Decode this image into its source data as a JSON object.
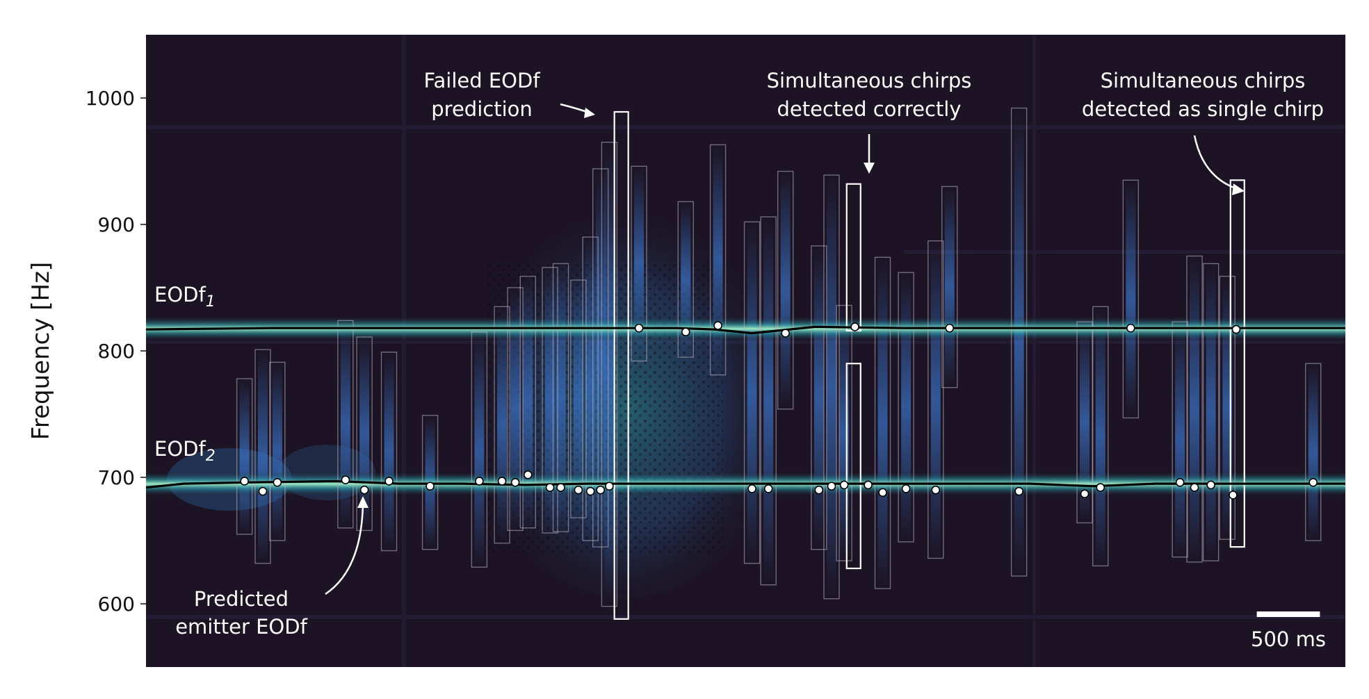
{
  "chart_data": {
    "type": "heatmap",
    "ylabel": "Frequency [Hz]",
    "ylim": [
      550,
      1050
    ],
    "xlim_ms": [
      0,
      9500
    ],
    "yticks": [
      600,
      700,
      800,
      900,
      1000
    ],
    "colormap": "dark purple to blue to teal to pale green",
    "colors": {
      "background": "#1c1424",
      "band_core": "#9ee8c4",
      "band_glow": "#2aa0a8",
      "chirp_glow": "#3b6fbf",
      "track_line": "#000000",
      "marker": "#ffffff",
      "annotation": "#ffffff"
    },
    "series": [
      {
        "name_prefix": "EODf",
        "name_sub": "1",
        "x_ms": [
          0,
          1000,
          2000,
          3000,
          3800,
          4200,
          4500,
          4800,
          5000,
          5300,
          6000,
          7000,
          8000,
          9500
        ],
        "freq_hz": [
          817,
          818,
          818,
          818,
          818,
          818,
          817,
          814,
          816,
          819,
          818,
          818,
          818,
          818
        ]
      },
      {
        "name_prefix": "EODf",
        "name_sub": "2",
        "x_ms": [
          0,
          300,
          800,
          1500,
          2000,
          2500,
          3000,
          3500,
          4000,
          5000,
          6000,
          7000,
          7500,
          8000,
          9500
        ],
        "freq_hz": [
          692,
          695,
          696,
          697,
          695,
          695,
          694,
          695,
          695,
          695,
          695,
          695,
          693,
          695,
          695
        ]
      }
    ],
    "chirp_markers": [
      {
        "x_ms": 3905,
        "freq_hz": 818
      },
      {
        "x_ms": 4275,
        "freq_hz": 815
      },
      {
        "x_ms": 4530,
        "freq_hz": 820
      },
      {
        "x_ms": 5065,
        "freq_hz": 814
      },
      {
        "x_ms": 5615,
        "freq_hz": 819
      },
      {
        "x_ms": 6365,
        "freq_hz": 818
      },
      {
        "x_ms": 7800,
        "freq_hz": 818
      },
      {
        "x_ms": 8635,
        "freq_hz": 817
      },
      {
        "x_ms": 780,
        "freq_hz": 697
      },
      {
        "x_ms": 925,
        "freq_hz": 689
      },
      {
        "x_ms": 1040,
        "freq_hz": 696
      },
      {
        "x_ms": 1580,
        "freq_hz": 698
      },
      {
        "x_ms": 1730,
        "freq_hz": 690
      },
      {
        "x_ms": 1925,
        "freq_hz": 697
      },
      {
        "x_ms": 2250,
        "freq_hz": 693
      },
      {
        "x_ms": 2640,
        "freq_hz": 697
      },
      {
        "x_ms": 2820,
        "freq_hz": 697
      },
      {
        "x_ms": 2925,
        "freq_hz": 696
      },
      {
        "x_ms": 3025,
        "freq_hz": 702
      },
      {
        "x_ms": 3200,
        "freq_hz": 692
      },
      {
        "x_ms": 3285,
        "freq_hz": 692
      },
      {
        "x_ms": 3425,
        "freq_hz": 690
      },
      {
        "x_ms": 3520,
        "freq_hz": 689
      },
      {
        "x_ms": 3600,
        "freq_hz": 690
      },
      {
        "x_ms": 3670,
        "freq_hz": 693
      },
      {
        "x_ms": 4800,
        "freq_hz": 691
      },
      {
        "x_ms": 4930,
        "freq_hz": 691
      },
      {
        "x_ms": 5330,
        "freq_hz": 690
      },
      {
        "x_ms": 5430,
        "freq_hz": 693
      },
      {
        "x_ms": 5530,
        "freq_hz": 694
      },
      {
        "x_ms": 5720,
        "freq_hz": 694
      },
      {
        "x_ms": 5835,
        "freq_hz": 688
      },
      {
        "x_ms": 6020,
        "freq_hz": 691
      },
      {
        "x_ms": 6255,
        "freq_hz": 690
      },
      {
        "x_ms": 6915,
        "freq_hz": 689
      },
      {
        "x_ms": 7435,
        "freq_hz": 687
      },
      {
        "x_ms": 7560,
        "freq_hz": 692
      },
      {
        "x_ms": 8190,
        "freq_hz": 696
      },
      {
        "x_ms": 8305,
        "freq_hz": 692
      },
      {
        "x_ms": 8435,
        "freq_hz": 694
      },
      {
        "x_ms": 8610,
        "freq_hz": 686
      },
      {
        "x_ms": 9245,
        "freq_hz": 696
      }
    ],
    "chirp_boxes": [
      {
        "x_ms": 780,
        "f_lo": 655,
        "f_hi": 778
      },
      {
        "x_ms": 925,
        "f_lo": 632,
        "f_hi": 801
      },
      {
        "x_ms": 1040,
        "f_lo": 650,
        "f_hi": 791
      },
      {
        "x_ms": 1580,
        "f_lo": 660,
        "f_hi": 824
      },
      {
        "x_ms": 1730,
        "f_lo": 658,
        "f_hi": 811
      },
      {
        "x_ms": 1925,
        "f_lo": 642,
        "f_hi": 799
      },
      {
        "x_ms": 2250,
        "f_lo": 643,
        "f_hi": 749
      },
      {
        "x_ms": 2640,
        "f_lo": 629,
        "f_hi": 815
      },
      {
        "x_ms": 2820,
        "f_lo": 648,
        "f_hi": 835
      },
      {
        "x_ms": 2925,
        "f_lo": 658,
        "f_hi": 850
      },
      {
        "x_ms": 3025,
        "f_lo": 660,
        "f_hi": 859
      },
      {
        "x_ms": 3200,
        "f_lo": 656,
        "f_hi": 866
      },
      {
        "x_ms": 3285,
        "f_lo": 657,
        "f_hi": 869
      },
      {
        "x_ms": 3425,
        "f_lo": 668,
        "f_hi": 856
      },
      {
        "x_ms": 3520,
        "f_lo": 650,
        "f_hi": 890
      },
      {
        "x_ms": 3600,
        "f_lo": 645,
        "f_hi": 944
      },
      {
        "x_ms": 3670,
        "f_lo": 598,
        "f_hi": 965
      },
      {
        "x_ms": 3905,
        "f_lo": 792,
        "f_hi": 946
      },
      {
        "x_ms": 4275,
        "f_lo": 795,
        "f_hi": 918
      },
      {
        "x_ms": 4530,
        "f_lo": 781,
        "f_hi": 963
      },
      {
        "x_ms": 4800,
        "f_lo": 632,
        "f_hi": 902
      },
      {
        "x_ms": 4930,
        "f_lo": 615,
        "f_hi": 906
      },
      {
        "x_ms": 5065,
        "f_lo": 754,
        "f_hi": 942
      },
      {
        "x_ms": 5330,
        "f_lo": 643,
        "f_hi": 883
      },
      {
        "x_ms": 5430,
        "f_lo": 604,
        "f_hi": 939
      },
      {
        "x_ms": 5530,
        "f_lo": 634,
        "f_hi": 836
      },
      {
        "x_ms": 5835,
        "f_lo": 612,
        "f_hi": 874
      },
      {
        "x_ms": 6020,
        "f_lo": 649,
        "f_hi": 862
      },
      {
        "x_ms": 6255,
        "f_lo": 636,
        "f_hi": 887
      },
      {
        "x_ms": 6365,
        "f_lo": 771,
        "f_hi": 930
      },
      {
        "x_ms": 6915,
        "f_lo": 622,
        "f_hi": 992
      },
      {
        "x_ms": 7435,
        "f_lo": 664,
        "f_hi": 823
      },
      {
        "x_ms": 7560,
        "f_lo": 630,
        "f_hi": 835
      },
      {
        "x_ms": 7800,
        "f_lo": 747,
        "f_hi": 935
      },
      {
        "x_ms": 8190,
        "f_lo": 637,
        "f_hi": 823
      },
      {
        "x_ms": 8305,
        "f_lo": 633,
        "f_hi": 875
      },
      {
        "x_ms": 8435,
        "f_lo": 634,
        "f_hi": 869
      },
      {
        "x_ms": 8565,
        "f_lo": 651,
        "f_hi": 859
      },
      {
        "x_ms": 9245,
        "f_lo": 650,
        "f_hi": 790
      }
    ],
    "highlight_boxes": [
      {
        "x_ms": 3905,
        "x_from_ms": 3710,
        "f_lo": 588,
        "f_hi": 989
      },
      {
        "x_from_ms": 5550,
        "f_lo": 628,
        "f_hi": 932,
        "gap_from_hz": 790,
        "gap_to_hz": 816
      },
      {
        "x_from_ms": 8590,
        "f_lo": 645,
        "f_hi": 935
      }
    ],
    "annotations": [
      {
        "lines": [
          "Failed EODf",
          "prediction"
        ]
      },
      {
        "lines": [
          "Simultaneous chirps",
          "detected correctly"
        ]
      },
      {
        "lines": [
          "Simultaneous chirps",
          "detected as single chirp"
        ]
      },
      {
        "lines": [
          "Predicted",
          "emitter EODf"
        ]
      }
    ],
    "scalebar": {
      "length_ms": 500,
      "label": "500 ms"
    }
  }
}
